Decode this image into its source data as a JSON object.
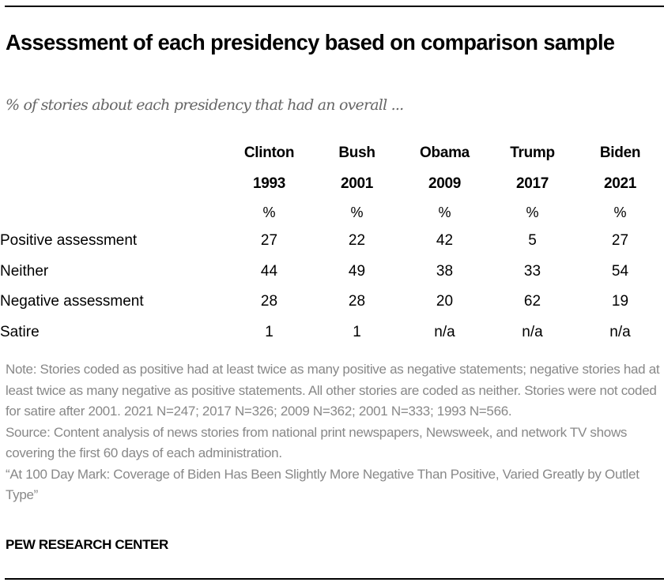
{
  "title": "Assessment of each presidency based on comparison sample",
  "subtitle": "% of stories about each presidency that had an overall ...",
  "chart_data": {
    "type": "table",
    "title": "Assessment of each presidency based on comparison sample",
    "subtitle": "% of stories about each presidency that had an overall ...",
    "columns": [
      {
        "name": "Clinton",
        "year": "1993",
        "unit": "%"
      },
      {
        "name": "Bush",
        "year": "2001",
        "unit": "%"
      },
      {
        "name": "Obama",
        "year": "2009",
        "unit": "%"
      },
      {
        "name": "Trump",
        "year": "2017",
        "unit": "%"
      },
      {
        "name": "Biden",
        "year": "2021",
        "unit": "%"
      }
    ],
    "rows": [
      {
        "label": "Positive assessment",
        "values": [
          "27",
          "22",
          "42",
          "5",
          "27"
        ]
      },
      {
        "label": "Neither",
        "values": [
          "44",
          "49",
          "38",
          "33",
          "54"
        ]
      },
      {
        "label": "Negative assessment",
        "values": [
          "28",
          "28",
          "20",
          "62",
          "19"
        ]
      },
      {
        "label": "Satire",
        "values": [
          "1",
          "1",
          "n/a",
          "n/a",
          "n/a"
        ]
      }
    ]
  },
  "notes": {
    "note": "Note: Stories coded as positive had at least twice as many positive as negative statements; negative stories had at least twice as many negative as positive statements. All other stories are coded as neither. Stories were not coded for satire after 2001. 2021 N=247; 2017 N=326; 2009 N=362; 2001 N=333; 1993 N=566.",
    "source": "Source: Content analysis of news stories from national print newspapers, Newsweek, and network TV shows covering the first 60 days of each administration.",
    "report": "“At 100 Day Mark: Coverage of Biden Has Been Slightly More Negative Than Positive, Varied Greatly by Outlet Type”"
  },
  "brand": "PEW RESEARCH CENTER",
  "colors": {
    "text": "#000000",
    "subtitle": "#666666",
    "notes": "#888888",
    "rule": "#000000"
  }
}
